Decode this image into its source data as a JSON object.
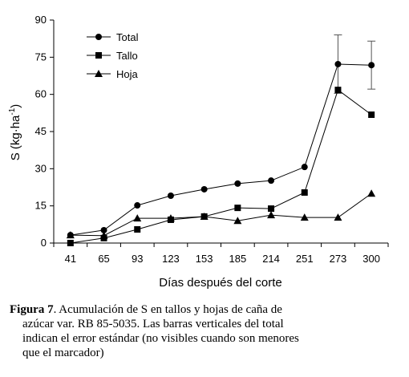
{
  "chart_data": {
    "type": "line",
    "y_label": [
      "S (kg·ha",
      "-1",
      ")"
    ],
    "x_label": "Días después del corte",
    "categories": [
      "41",
      "65",
      "93",
      "123",
      "153",
      "185",
      "214",
      "251",
      "273",
      "300"
    ],
    "ylim": [
      0,
      90
    ],
    "yticks": [
      0,
      15,
      30,
      45,
      60,
      75,
      90
    ],
    "legend": "top-left",
    "series": [
      {
        "name": "Total",
        "color": "#000000",
        "marker": "circle",
        "values": [
          3.2,
          5.2,
          15.2,
          19.1,
          21.7,
          24,
          25.2,
          30.7,
          72.2,
          71.8
        ],
        "errors": [
          null,
          null,
          null,
          null,
          null,
          null,
          null,
          null,
          11.8,
          9.7
        ]
      },
      {
        "name": "Tallo",
        "color": "#000000",
        "marker": "square",
        "values": [
          0,
          2,
          5.5,
          9.4,
          10.7,
          14.2,
          13.9,
          20.4,
          61.8,
          51.8
        ]
      },
      {
        "name": "Hoja",
        "color": "#000000",
        "marker": "triangle",
        "values": [
          3.2,
          3,
          10,
          10,
          10.7,
          9,
          11.3,
          10.3,
          10.3,
          20
        ]
      }
    ]
  },
  "caption": {
    "label": "Figura 7",
    "text": ". Acumulación de S en tallos y hojas de caña de azúcar var. RB 85-5035. Las barras verticales del total indican el error estándar (no visibles cuando son menores que el marcador)"
  }
}
